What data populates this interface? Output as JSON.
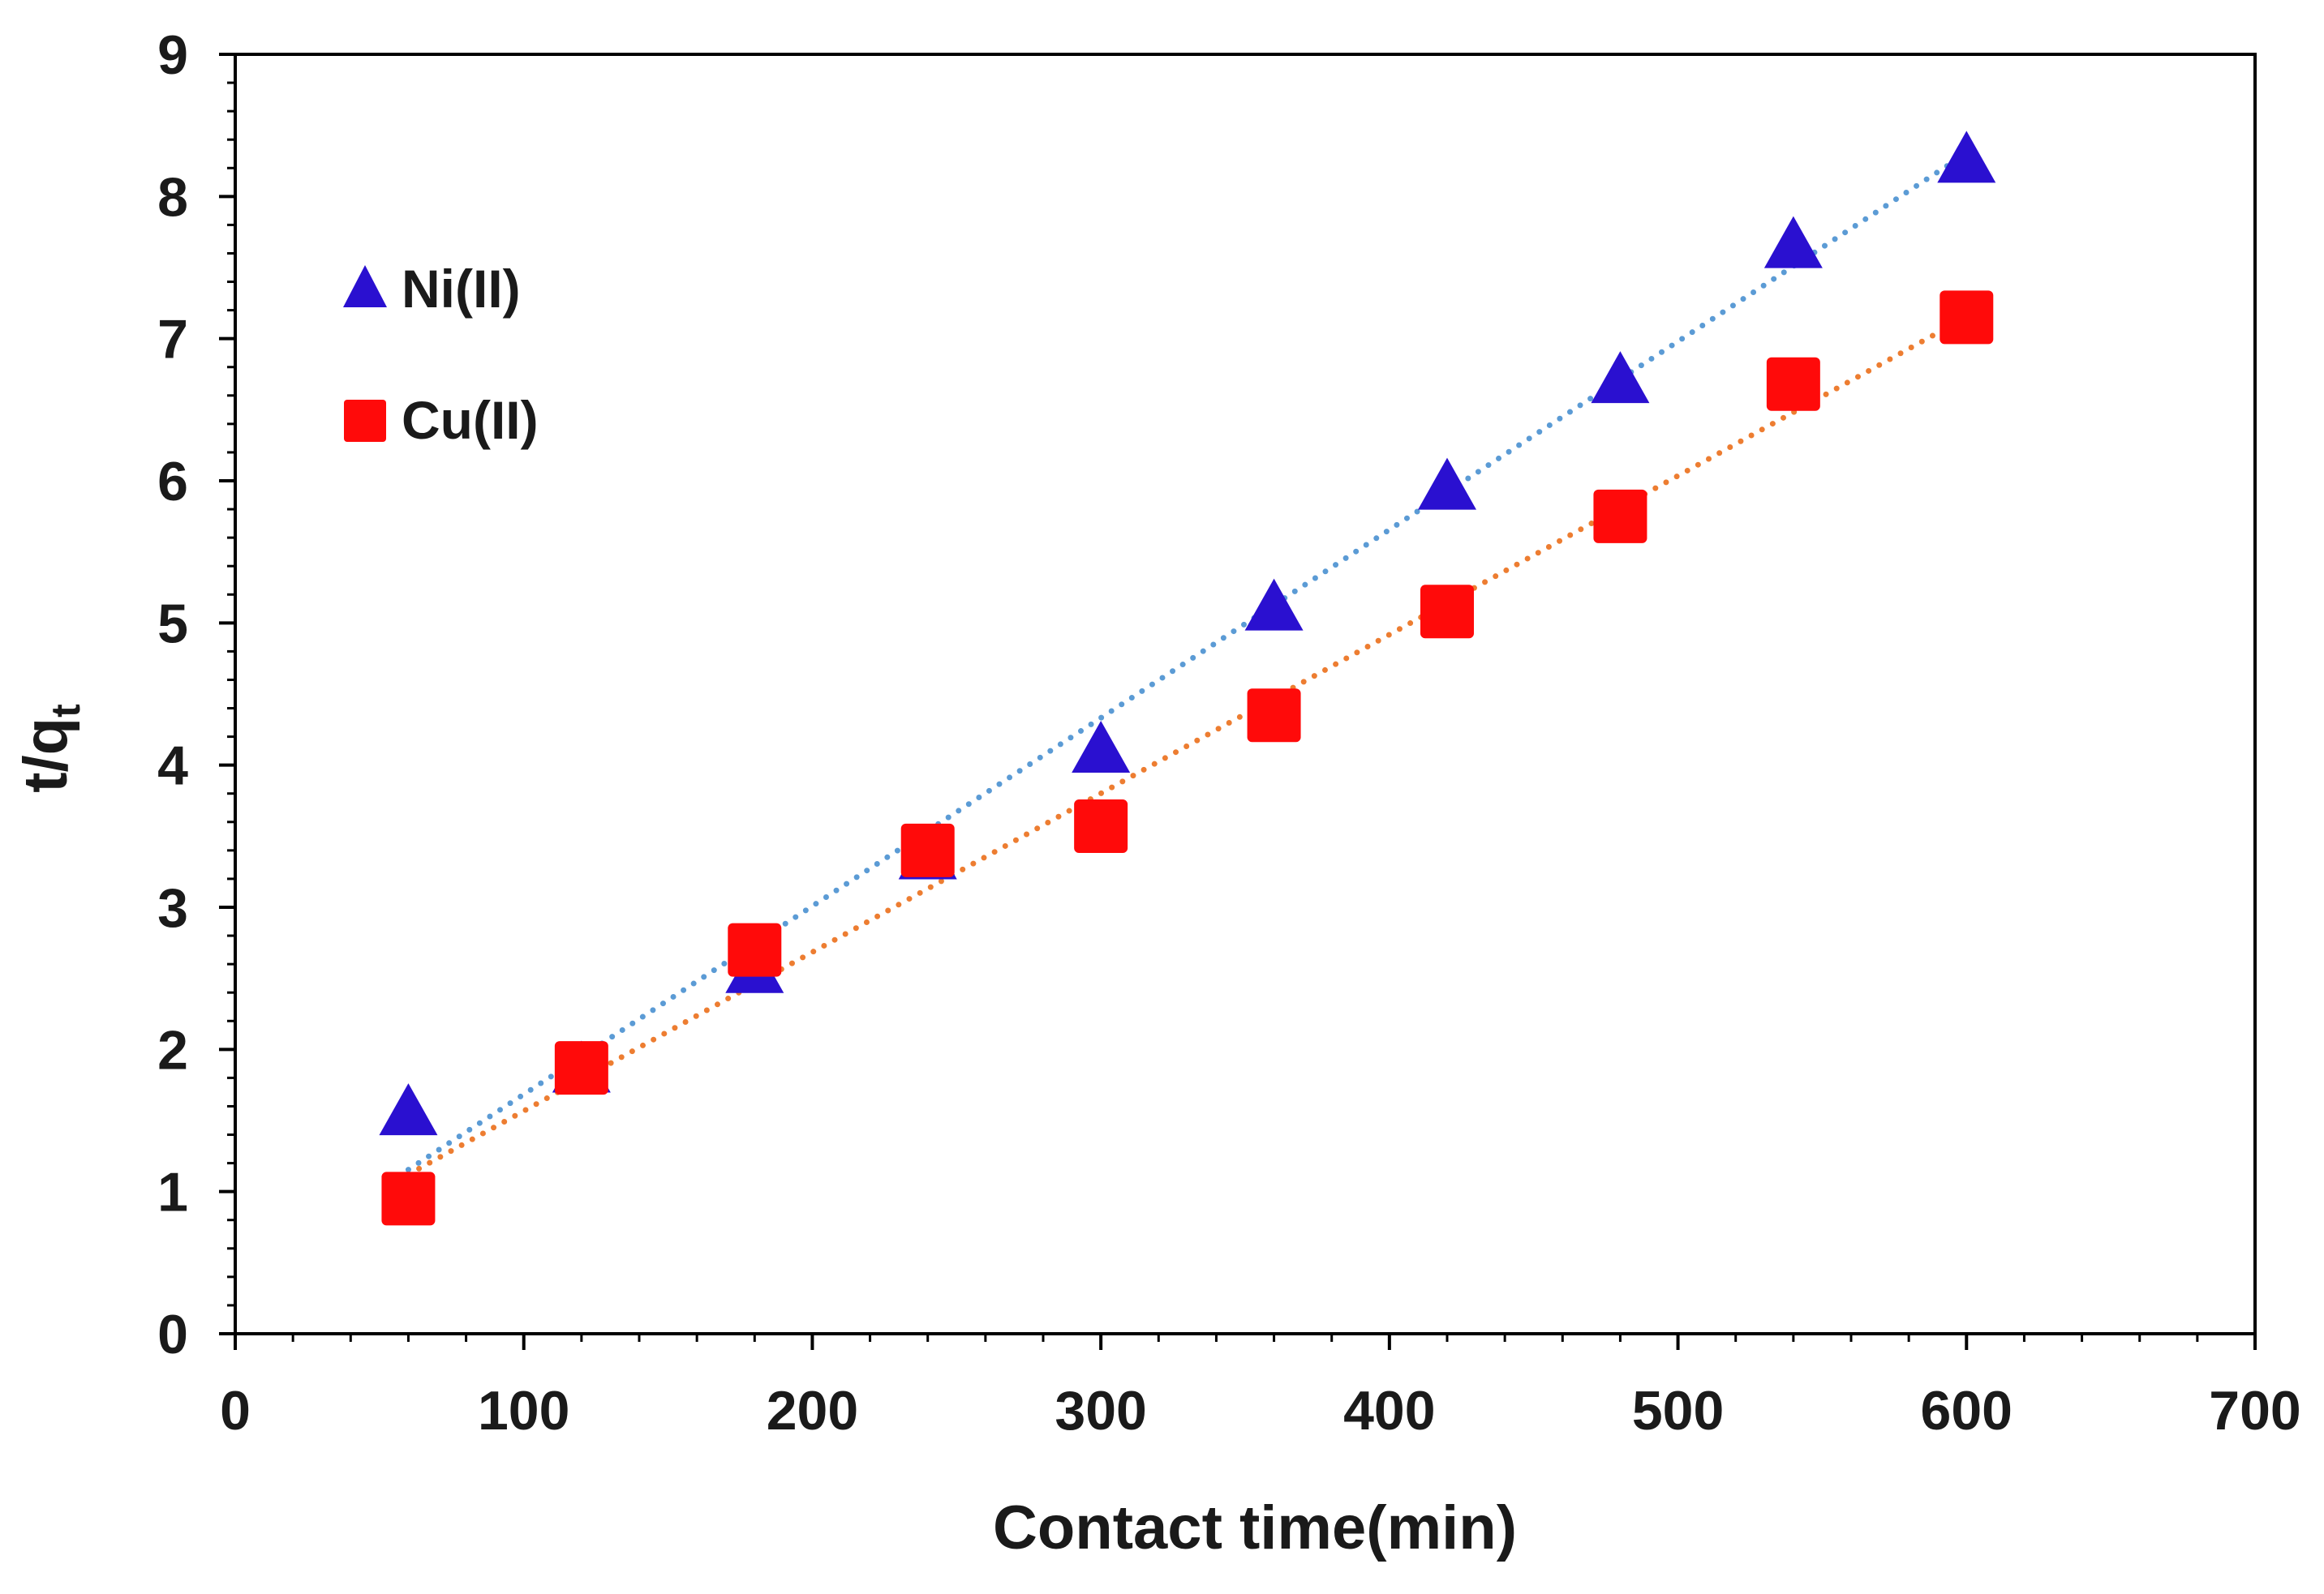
{
  "chart_data": {
    "type": "scatter",
    "title": "",
    "xlabel": "Contact time(min)",
    "ylabel": "t/q",
    "ylabel_subscript": "t",
    "xlim": [
      0,
      700
    ],
    "ylim": [
      0,
      9
    ],
    "xticks": [
      0,
      100,
      200,
      300,
      400,
      500,
      600,
      700
    ],
    "yticks": [
      0,
      1,
      2,
      3,
      4,
      5,
      6,
      7,
      8,
      9
    ],
    "x_minor_step": 20,
    "y_minor_step": 0.2,
    "grid": false,
    "legend_position": "top-left",
    "series": [
      {
        "name": "Ni(II)",
        "marker": "triangle",
        "color": "#2a10d0",
        "trend_color": "#5b9bd5",
        "x": [
          60,
          120,
          180,
          240,
          300,
          360,
          420,
          480,
          540,
          600
        ],
        "y": [
          1.55,
          1.85,
          2.55,
          3.35,
          4.1,
          5.1,
          5.95,
          6.7,
          7.65,
          8.25
        ],
        "trendline": {
          "type": "linear",
          "slope": 0.01324,
          "intercept": 0.36
        }
      },
      {
        "name": "Cu(II)",
        "marker": "square",
        "color": "#ff0a0a",
        "trend_color": "#ed7d31",
        "x": [
          60,
          120,
          180,
          240,
          300,
          360,
          420,
          480,
          540,
          600
        ],
        "y": [
          0.95,
          1.87,
          2.7,
          3.4,
          3.57,
          4.35,
          5.08,
          5.75,
          6.68,
          7.15
        ],
        "trendline": {
          "type": "linear",
          "slope": 0.01117,
          "intercept": 0.45
        }
      }
    ]
  }
}
